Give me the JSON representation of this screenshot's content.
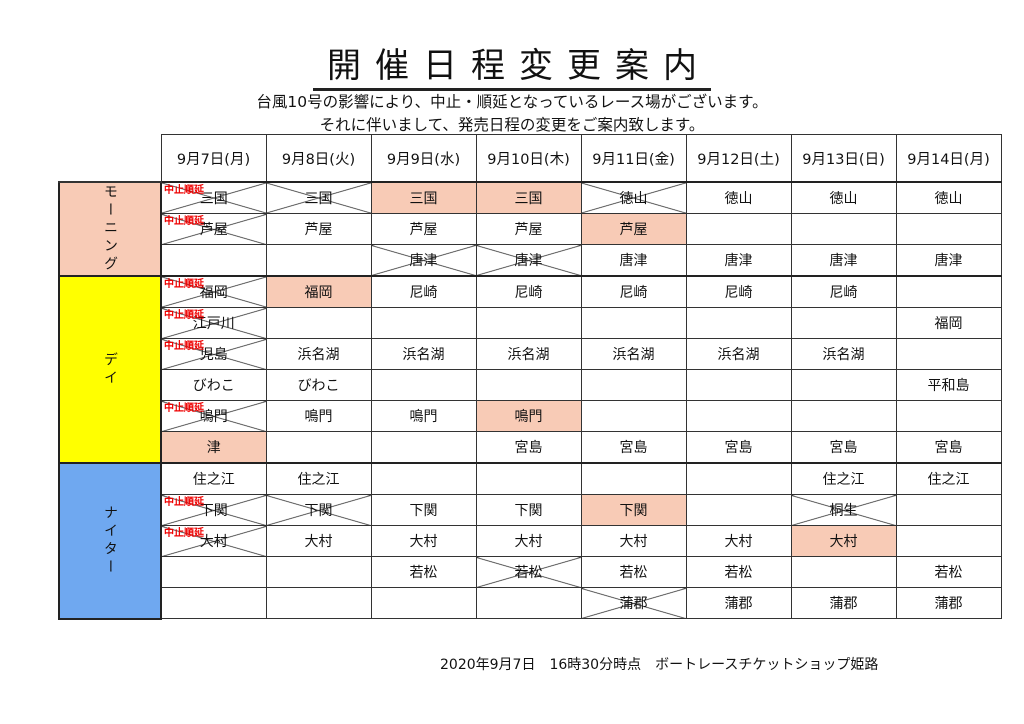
{
  "title": "開催日程変更案内",
  "subtitle_lines": [
    "台風10号の影響により、中止・順延となっているレース場がございます。",
    "それに伴いまして、発売日程の変更をご案内致します。"
  ],
  "cancel_label": "中止順延",
  "dates": [
    "9月7日(月)",
    "9月8日(火)",
    "9月9日(水)",
    "9月10日(木)",
    "9月11日(金)",
    "9月12日(土)",
    "9月13日(日)",
    "9月14日(月)"
  ],
  "colors": {
    "highlight": "#f8cbb6",
    "morning": "#f8cbb6",
    "day": "#ffff00",
    "nighter": "#6fa8f0",
    "cancel": "#e00000"
  },
  "legend_states": {
    "x": "crossed out",
    "h": "highlighted (changed)",
    "cx": "crossed out, 中止順延"
  },
  "groups": [
    {
      "label": "モーニング",
      "color": "#f8cbb6",
      "rows": [
        [
          [
            "三国",
            "cx"
          ],
          [
            "三国",
            "x"
          ],
          [
            "三国",
            "h"
          ],
          [
            "三国",
            "h"
          ],
          [
            "徳山",
            "x"
          ],
          [
            "徳山",
            ""
          ],
          [
            "徳山",
            ""
          ],
          [
            "徳山",
            ""
          ]
        ],
        [
          [
            "芦屋",
            "cx"
          ],
          [
            "芦屋",
            ""
          ],
          [
            "芦屋",
            ""
          ],
          [
            "芦屋",
            ""
          ],
          [
            "芦屋",
            "h"
          ],
          [
            "",
            ""
          ],
          [
            "",
            ""
          ],
          [
            "",
            ""
          ]
        ],
        [
          [
            "",
            ""
          ],
          [
            "",
            ""
          ],
          [
            "唐津",
            "x"
          ],
          [
            "唐津",
            "x"
          ],
          [
            "唐津",
            ""
          ],
          [
            "唐津",
            ""
          ],
          [
            "唐津",
            ""
          ],
          [
            "唐津",
            ""
          ]
        ]
      ]
    },
    {
      "label": "デイ",
      "color": "#ffff00",
      "rows": [
        [
          [
            "福岡",
            "cx"
          ],
          [
            "福岡",
            "h"
          ],
          [
            "尼崎",
            ""
          ],
          [
            "尼崎",
            ""
          ],
          [
            "尼崎",
            ""
          ],
          [
            "尼崎",
            ""
          ],
          [
            "尼崎",
            ""
          ],
          [
            "",
            ""
          ]
        ],
        [
          [
            "江戸川",
            "cx"
          ],
          [
            "",
            ""
          ],
          [
            "",
            ""
          ],
          [
            "",
            ""
          ],
          [
            "",
            ""
          ],
          [
            "",
            ""
          ],
          [
            "",
            ""
          ],
          [
            "福岡",
            ""
          ]
        ],
        [
          [
            "児島",
            "cx"
          ],
          [
            "浜名湖",
            ""
          ],
          [
            "浜名湖",
            ""
          ],
          [
            "浜名湖",
            ""
          ],
          [
            "浜名湖",
            ""
          ],
          [
            "浜名湖",
            ""
          ],
          [
            "浜名湖",
            ""
          ],
          [
            "",
            ""
          ]
        ],
        [
          [
            "びわこ",
            ""
          ],
          [
            "びわこ",
            ""
          ],
          [
            "",
            ""
          ],
          [
            "",
            ""
          ],
          [
            "",
            ""
          ],
          [
            "",
            ""
          ],
          [
            "",
            ""
          ],
          [
            "平和島",
            ""
          ]
        ],
        [
          [
            "鳴門",
            "cx"
          ],
          [
            "鳴門",
            ""
          ],
          [
            "鳴門",
            ""
          ],
          [
            "鳴門",
            "h"
          ],
          [
            "",
            ""
          ],
          [
            "",
            ""
          ],
          [
            "",
            ""
          ],
          [
            "",
            ""
          ]
        ],
        [
          [
            "津",
            "h"
          ],
          [
            "",
            ""
          ],
          [
            "",
            ""
          ],
          [
            "宮島",
            ""
          ],
          [
            "宮島",
            ""
          ],
          [
            "宮島",
            ""
          ],
          [
            "宮島",
            ""
          ],
          [
            "宮島",
            ""
          ]
        ]
      ]
    },
    {
      "label": "ナイター",
      "color": "#6fa8f0",
      "rows": [
        [
          [
            "住之江",
            ""
          ],
          [
            "住之江",
            ""
          ],
          [
            "",
            ""
          ],
          [
            "",
            ""
          ],
          [
            "",
            ""
          ],
          [
            "",
            ""
          ],
          [
            "住之江",
            ""
          ],
          [
            "住之江",
            ""
          ]
        ],
        [
          [
            "下関",
            "cx"
          ],
          [
            "下関",
            "x"
          ],
          [
            "下関",
            ""
          ],
          [
            "下関",
            ""
          ],
          [
            "下関",
            "h"
          ],
          [
            "",
            ""
          ],
          [
            "桐生",
            "x"
          ],
          [
            "",
            ""
          ]
        ],
        [
          [
            "大村",
            "cx"
          ],
          [
            "大村",
            ""
          ],
          [
            "大村",
            ""
          ],
          [
            "大村",
            ""
          ],
          [
            "大村",
            ""
          ],
          [
            "大村",
            ""
          ],
          [
            "大村",
            "h"
          ],
          [
            "",
            ""
          ]
        ],
        [
          [
            "",
            ""
          ],
          [
            "",
            ""
          ],
          [
            "若松",
            ""
          ],
          [
            "若松",
            "x"
          ],
          [
            "若松",
            ""
          ],
          [
            "若松",
            ""
          ],
          [
            "",
            ""
          ],
          [
            "若松",
            ""
          ]
        ],
        [
          [
            "",
            ""
          ],
          [
            "",
            ""
          ],
          [
            "",
            ""
          ],
          [
            "",
            ""
          ],
          [
            "蒲郡",
            "x"
          ],
          [
            "蒲郡",
            ""
          ],
          [
            "蒲郡",
            ""
          ],
          [
            "蒲郡",
            ""
          ]
        ]
      ]
    }
  ],
  "footer": "2020年9月7日　16時30分時点　ボートレースチケットショップ姫路"
}
